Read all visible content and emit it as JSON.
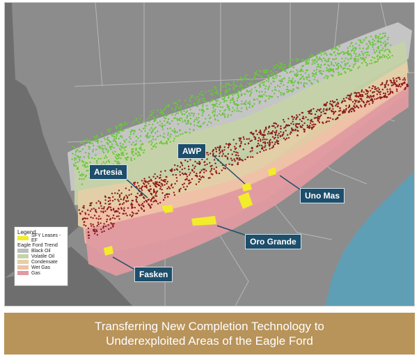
{
  "callouts": {
    "awp": "AWP",
    "artesia": "Artesia",
    "uno_mas": "Uno Mas",
    "oro_grande": "Oro Grande",
    "fasken": "Fasken"
  },
  "legend": {
    "title": "Legend",
    "leases_label": "SFY Leases - EF",
    "trend_heading": "Eagle Ford Trend",
    "items": [
      {
        "label": "Black Oil",
        "color": "#bdbdbd"
      },
      {
        "label": "Volatile Oil",
        "color": "#c5d3a8"
      },
      {
        "label": "Condensate",
        "color": "#e5cfa6"
      },
      {
        "label": "Wet Gas",
        "color": "#efc0a6"
      },
      {
        "label": "Gas",
        "color": "#e09aa0"
      }
    ],
    "leases_color": "#f2ec2a"
  },
  "banner": {
    "line1": "Transferring New Completion Technology to",
    "line2": "Underexploited Areas of the Eagle Ford"
  },
  "colors": {
    "land": "#8c8c8c",
    "mexico": "#6b6b6b",
    "gulf": "#5f9fb5",
    "green_wells": "#6ac63c",
    "red_wells": "#8b1a1a",
    "leases": "#f2ec2a",
    "callout_bg": "#1d4e6b",
    "banner_bg": "#b8935a"
  }
}
